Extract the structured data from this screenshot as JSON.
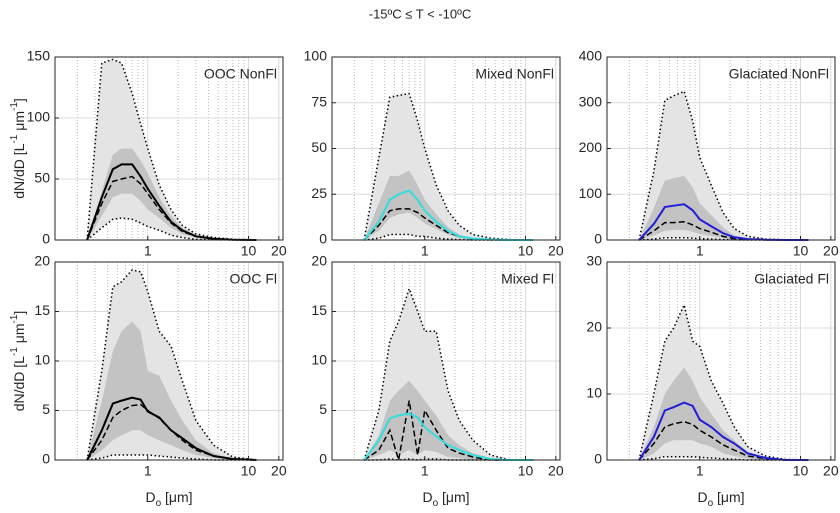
{
  "suptitle": "-15ºC ≤ T < -10ºC",
  "chart_data": [
    {
      "type": "line",
      "title": "OOC NonFl",
      "log_x": true,
      "grid": true,
      "minor_grid": true,
      "ylabel_parts": [
        {
          "text": "dN/dD [L"
        },
        {
          "text": "-1",
          "sup": true
        },
        {
          "text": " μm"
        },
        {
          "text": "-1",
          "sup": true
        },
        {
          "text": "]"
        }
      ],
      "xlim": [
        0.12,
        22
      ],
      "xticks": [
        1,
        10,
        20
      ],
      "ylim": [
        0,
        150
      ],
      "yticks": [
        0,
        50,
        100,
        150
      ],
      "x": [
        0.25,
        0.35,
        0.45,
        0.55,
        0.7,
        0.85,
        1.0,
        1.3,
        1.7,
        2.2,
        3,
        4.5,
        7,
        12
      ],
      "bands": [
        {
          "color": "#e4e4e4",
          "lower": [
            0,
            10,
            17,
            18,
            17,
            14,
            11,
            8,
            4,
            2,
            0.5,
            0.2,
            0,
            0
          ],
          "upper": [
            0,
            145,
            148,
            145,
            120,
            95,
            75,
            45,
            25,
            12,
            5,
            2,
            0.5,
            0
          ]
        },
        {
          "color": "#bdbdbd",
          "lower": [
            0,
            20,
            35,
            38,
            38,
            32,
            25,
            18,
            10,
            5,
            2,
            0.5,
            0.1,
            0
          ],
          "upper": [
            0,
            40,
            70,
            75,
            75,
            65,
            55,
            35,
            20,
            10,
            4,
            1.5,
            0.3,
            0
          ]
        }
      ],
      "series": [
        {
          "color": "#000000",
          "style": "dotted",
          "values": [
            0,
            10,
            17,
            18,
            17,
            14,
            11,
            8,
            4,
            2,
            0.5,
            0.2,
            0,
            0
          ]
        },
        {
          "color": "#000000",
          "style": "dotted",
          "values": [
            0,
            145,
            148,
            145,
            120,
            95,
            75,
            45,
            25,
            12,
            5,
            2,
            0.5,
            0
          ]
        },
        {
          "color": "#000000",
          "style": "dashed",
          "values": [
            0,
            30,
            48,
            50,
            52,
            46,
            38,
            25,
            14,
            7,
            3,
            1,
            0.2,
            0
          ]
        },
        {
          "color": "#000000",
          "style": "solid",
          "values": [
            0,
            35,
            58,
            62,
            62,
            52,
            42,
            28,
            15,
            8,
            3,
            1,
            0.2,
            0
          ]
        }
      ]
    },
    {
      "type": "line",
      "title": "Mixed NonFl",
      "log_x": true,
      "grid": true,
      "minor_grid": true,
      "xlim": [
        0.12,
        22
      ],
      "xticks": [
        1,
        10,
        20
      ],
      "ylim": [
        0,
        100
      ],
      "yticks": [
        0,
        25,
        50,
        75,
        100
      ],
      "x": [
        0.25,
        0.35,
        0.45,
        0.55,
        0.7,
        0.85,
        1.0,
        1.3,
        1.7,
        2.2,
        3,
        4.5,
        7,
        12
      ],
      "bands": [
        {
          "color": "#e4e4e4",
          "lower": [
            0,
            1,
            3,
            3,
            3,
            2,
            2,
            1,
            0.5,
            0.2,
            0,
            0,
            0,
            0
          ],
          "upper": [
            0,
            45,
            78,
            79,
            80,
            65,
            50,
            30,
            16,
            8,
            3,
            1,
            0.2,
            0
          ]
        },
        {
          "color": "#bdbdbd",
          "lower": [
            0,
            5,
            12,
            14,
            15,
            12,
            9,
            6,
            3,
            1,
            0.3,
            0.1,
            0,
            0
          ],
          "upper": [
            0,
            20,
            35,
            35,
            38,
            30,
            22,
            14,
            7,
            3,
            1,
            0.3,
            0,
            0
          ]
        }
      ],
      "series": [
        {
          "color": "#000000",
          "style": "dotted",
          "values": [
            0,
            1,
            3,
            3,
            3,
            2,
            2,
            1,
            0.5,
            0.2,
            0,
            0,
            0,
            0
          ]
        },
        {
          "color": "#000000",
          "style": "dotted",
          "values": [
            0,
            45,
            78,
            79,
            80,
            65,
            50,
            30,
            16,
            8,
            3,
            1,
            0.2,
            0
          ]
        },
        {
          "color": "#000000",
          "style": "dashed",
          "values": [
            0,
            8,
            16,
            17,
            17,
            15,
            12,
            8,
            4,
            2,
            0.5,
            0.1,
            0,
            0
          ]
        },
        {
          "color": "#33dddd",
          "style": "solid",
          "values": [
            0,
            10,
            22,
            25,
            27,
            22,
            16,
            10,
            5,
            2,
            0.8,
            0.2,
            0,
            0
          ]
        }
      ]
    },
    {
      "type": "line",
      "title": "Glaciated NonFl",
      "log_x": true,
      "grid": true,
      "minor_grid": true,
      "xlim": [
        0.12,
        22
      ],
      "xticks": [
        1,
        10,
        20
      ],
      "ylim": [
        0,
        400
      ],
      "yticks": [
        0,
        100,
        200,
        300,
        400
      ],
      "x": [
        0.25,
        0.35,
        0.45,
        0.55,
        0.7,
        0.85,
        1.0,
        1.3,
        1.7,
        2.2,
        3,
        4.5,
        7,
        12
      ],
      "bands": [
        {
          "color": "#e4e4e4",
          "lower": [
            0,
            2,
            5,
            5,
            5,
            4,
            3,
            2,
            1,
            0.5,
            0,
            0,
            0,
            0
          ],
          "upper": [
            0,
            150,
            305,
            315,
            325,
            260,
            180,
            120,
            60,
            25,
            8,
            2,
            0.5,
            0
          ]
        },
        {
          "color": "#bdbdbd",
          "lower": [
            0,
            10,
            20,
            22,
            22,
            18,
            13,
            9,
            4,
            2,
            0.5,
            0.1,
            0,
            0
          ],
          "upper": [
            0,
            70,
            130,
            135,
            140,
            115,
            80,
            55,
            28,
            10,
            3,
            1,
            0,
            0
          ]
        }
      ],
      "series": [
        {
          "color": "#000000",
          "style": "dotted",
          "values": [
            0,
            2,
            5,
            5,
            5,
            4,
            3,
            2,
            1,
            0.5,
            0,
            0,
            0,
            0
          ]
        },
        {
          "color": "#000000",
          "style": "dotted",
          "values": [
            0,
            150,
            305,
            315,
            325,
            260,
            180,
            120,
            60,
            25,
            8,
            2,
            0.5,
            0
          ]
        },
        {
          "color": "#000000",
          "style": "dashed",
          "values": [
            0,
            20,
            38,
            38,
            40,
            33,
            25,
            17,
            8,
            3,
            1,
            0.3,
            0,
            0
          ]
        },
        {
          "color": "#1f1fd6",
          "style": "solid",
          "values": [
            0,
            35,
            72,
            75,
            78,
            65,
            45,
            30,
            15,
            6,
            2,
            0.5,
            0,
            0
          ]
        }
      ]
    },
    {
      "type": "line",
      "title": "OOC Fl",
      "log_x": true,
      "grid": true,
      "minor_grid": true,
      "ylabel_parts": [
        {
          "text": "dN/dD [L"
        },
        {
          "text": "-1",
          "sup": true
        },
        {
          "text": " μm"
        },
        {
          "text": "-1",
          "sup": true
        },
        {
          "text": "]"
        }
      ],
      "xlabel_parts": [
        {
          "text": "D"
        },
        {
          "text": "o",
          "sub": true
        },
        {
          "text": " [μm]"
        }
      ],
      "xlim": [
        0.12,
        22
      ],
      "xticks": [
        1,
        10,
        20
      ],
      "ylim": [
        0,
        20
      ],
      "yticks": [
        0,
        5,
        10,
        15,
        20
      ],
      "x": [
        0.25,
        0.35,
        0.45,
        0.55,
        0.7,
        0.85,
        1.0,
        1.3,
        1.7,
        2.2,
        3,
        4.5,
        7,
        12
      ],
      "bands": [
        {
          "color": "#e4e4e4",
          "lower": [
            0,
            0.2,
            0.5,
            0.5,
            0.5,
            0.5,
            0.5,
            0.4,
            0.3,
            0.2,
            0.1,
            0,
            0,
            0
          ],
          "upper": [
            0,
            9,
            17.5,
            18,
            19.2,
            19,
            17,
            13,
            11.5,
            8,
            4,
            1.5,
            0.3,
            0
          ]
        },
        {
          "color": "#bdbdbd",
          "lower": [
            0,
            1,
            2,
            2.5,
            3,
            3,
            2.5,
            2,
            1.5,
            1,
            0.5,
            0.2,
            0,
            0
          ],
          "upper": [
            0,
            6,
            11,
            13,
            14,
            13,
            9,
            8.5,
            6,
            4,
            2,
            0.7,
            0.1,
            0
          ]
        }
      ],
      "series": [
        {
          "color": "#000000",
          "style": "dotted",
          "values": [
            0,
            0.2,
            0.5,
            0.5,
            0.5,
            0.5,
            0.5,
            0.4,
            0.3,
            0.2,
            0.1,
            0,
            0,
            0
          ]
        },
        {
          "color": "#000000",
          "style": "dotted",
          "values": [
            0,
            9,
            17.5,
            18,
            19.2,
            19,
            17,
            13,
            11.5,
            8,
            4,
            1.5,
            0.3,
            0
          ]
        },
        {
          "color": "#000000",
          "style": "dashed",
          "values": [
            0,
            2,
            4.3,
            5,
            5.5,
            5.6,
            5,
            4.2,
            3,
            2,
            1,
            0.4,
            0.1,
            0
          ]
        },
        {
          "color": "#000000",
          "style": "solid",
          "values": [
            0,
            3,
            5.7,
            6,
            6.3,
            6.1,
            4.9,
            4.3,
            3,
            2.2,
            1.2,
            0.4,
            0.1,
            0
          ]
        }
      ]
    },
    {
      "type": "line",
      "title": "Mixed Fl",
      "log_x": true,
      "grid": true,
      "minor_grid": true,
      "xlabel_parts": [
        {
          "text": "D"
        },
        {
          "text": "o",
          "sub": true
        },
        {
          "text": " [μm]"
        }
      ],
      "xlim": [
        0.12,
        22
      ],
      "xticks": [
        1,
        10,
        20
      ],
      "ylim": [
        0,
        20
      ],
      "yticks": [
        0,
        5,
        10,
        15,
        20
      ],
      "x": [
        0.25,
        0.35,
        0.45,
        0.55,
        0.7,
        0.85,
        1.0,
        1.3,
        1.7,
        2.2,
        3,
        4.5,
        7,
        12
      ],
      "bands": [
        {
          "color": "#e4e4e4",
          "lower": [
            0,
            0,
            0.1,
            0,
            0.1,
            0,
            0.1,
            0.1,
            0,
            0,
            0,
            0,
            0,
            0
          ],
          "upper": [
            0,
            5,
            12,
            14,
            17.3,
            15,
            13,
            13,
            7,
            4,
            2,
            0.5,
            0,
            0
          ]
        },
        {
          "color": "#bdbdbd",
          "lower": [
            0,
            0.5,
            1,
            0.5,
            1,
            0.5,
            1,
            0.8,
            0.3,
            0.2,
            0,
            0,
            0,
            0
          ],
          "upper": [
            0,
            2.5,
            6,
            7,
            8,
            7,
            6,
            4.5,
            2.5,
            1.5,
            0.7,
            0.2,
            0,
            0
          ]
        }
      ],
      "series": [
        {
          "color": "#000000",
          "style": "dotted",
          "values": [
            0,
            0,
            0.1,
            0,
            0.1,
            0,
            0.1,
            0.1,
            0,
            0,
            0,
            0,
            0,
            0
          ]
        },
        {
          "color": "#000000",
          "style": "dotted",
          "values": [
            0,
            5,
            12,
            14,
            17.3,
            15,
            13,
            13,
            7,
            4,
            2,
            0.5,
            0,
            0
          ]
        },
        {
          "color": "#000000",
          "style": "dashed",
          "values": [
            0,
            1,
            3,
            0,
            6,
            0.5,
            5,
            3,
            1.2,
            0.7,
            0.3,
            0,
            0,
            0
          ]
        },
        {
          "color": "#33dddd",
          "style": "solid",
          "values": [
            0,
            2,
            4.2,
            4.5,
            4.7,
            4.3,
            3.3,
            2.4,
            1.5,
            1,
            0.5,
            0.1,
            0,
            0
          ]
        }
      ]
    },
    {
      "type": "line",
      "title": "Glaciated Fl",
      "log_x": true,
      "grid": true,
      "minor_grid": true,
      "xlabel_parts": [
        {
          "text": "D"
        },
        {
          "text": "o",
          "sub": true
        },
        {
          "text": " [μm]"
        }
      ],
      "xlim": [
        0.12,
        22
      ],
      "xticks": [
        1,
        10,
        20
      ],
      "ylim": [
        0,
        30
      ],
      "yticks": [
        0,
        10,
        20,
        30
      ],
      "x": [
        0.25,
        0.35,
        0.45,
        0.55,
        0.7,
        0.85,
        1.0,
        1.3,
        1.7,
        2.2,
        3,
        4.5,
        7,
        12
      ],
      "bands": [
        {
          "color": "#e4e4e4",
          "lower": [
            0,
            0.2,
            0.5,
            0.5,
            0.5,
            0.5,
            0.4,
            0.3,
            0.2,
            0.1,
            0,
            0,
            0,
            0
          ],
          "upper": [
            0,
            10,
            18,
            20,
            23.5,
            18,
            17.2,
            12,
            8.6,
            5,
            2,
            0.6,
            0.1,
            0
          ]
        },
        {
          "color": "#bdbdbd",
          "lower": [
            0,
            1,
            2.5,
            3,
            3,
            3,
            2.5,
            2,
            1,
            0.6,
            0.2,
            0,
            0,
            0
          ],
          "upper": [
            0,
            5,
            10,
            12,
            14,
            12,
            9.5,
            7,
            4.5,
            3,
            1.2,
            0.4,
            0,
            0
          ]
        }
      ],
      "series": [
        {
          "color": "#000000",
          "style": "dotted",
          "values": [
            0,
            0.2,
            0.5,
            0.5,
            0.5,
            0.5,
            0.4,
            0.3,
            0.2,
            0.1,
            0,
            0,
            0,
            0
          ]
        },
        {
          "color": "#000000",
          "style": "dotted",
          "values": [
            0,
            10,
            18,
            20,
            23.5,
            18,
            17.2,
            12,
            8.6,
            5,
            2,
            0.6,
            0.1,
            0
          ]
        },
        {
          "color": "#000000",
          "style": "dashed",
          "values": [
            0,
            2.5,
            5,
            5.5,
            5.8,
            5.4,
            4.5,
            3.5,
            2.3,
            1.5,
            0.6,
            0.2,
            0,
            0
          ]
        },
        {
          "color": "#1f1fd6",
          "style": "solid",
          "values": [
            0,
            3.5,
            7.5,
            8,
            8.7,
            8.2,
            6.1,
            5,
            3.5,
            2.5,
            1,
            0.3,
            0,
            0
          ]
        }
      ]
    }
  ]
}
